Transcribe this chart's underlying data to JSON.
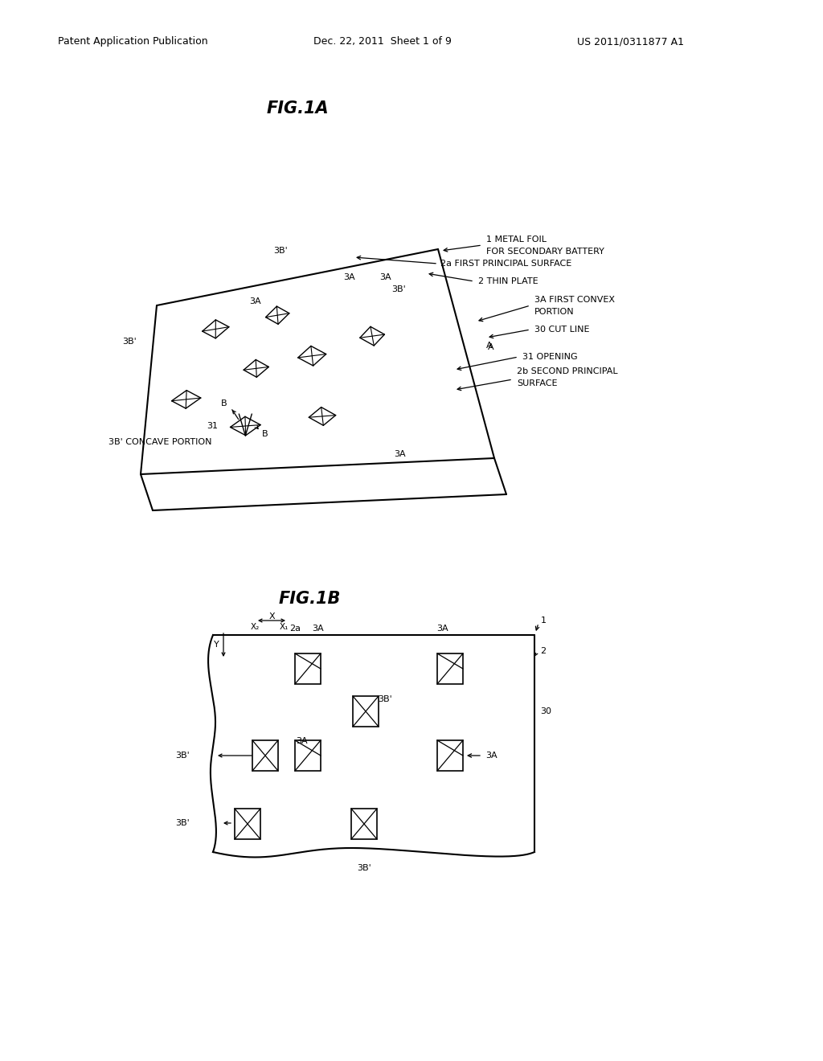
{
  "bg_color": "#ffffff",
  "text_color": "#000000",
  "header_left": "Patent Application Publication",
  "header_center": "Dec. 22, 2011  Sheet 1 of 9",
  "header_right": "US 2011/0311877 A1",
  "fig1a_title": "FIG.1A",
  "fig1b_title": "FIG.1B"
}
